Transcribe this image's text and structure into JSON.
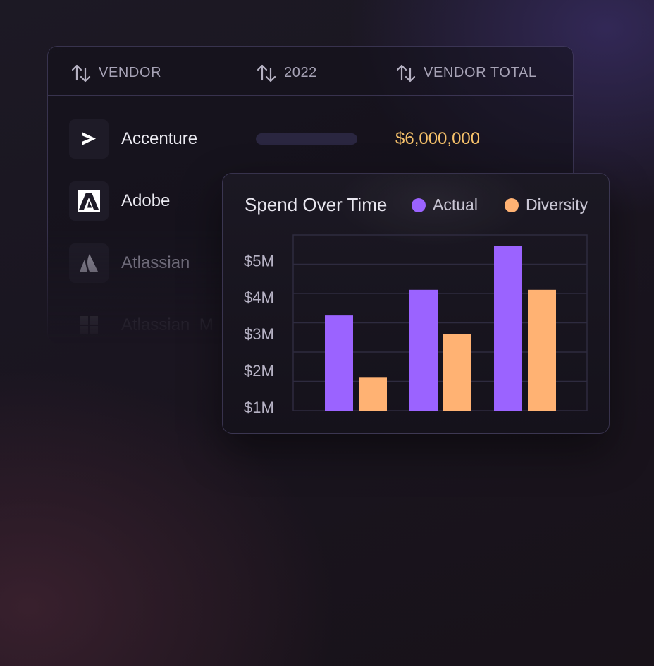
{
  "table": {
    "columns": [
      {
        "label": "VENDOR"
      },
      {
        "label": "2022"
      },
      {
        "label": "VENDOR TOTAL"
      }
    ],
    "rows": [
      {
        "vendor": "Accenture",
        "logo": "accenture-logo",
        "total": "$6,000,000"
      },
      {
        "vendor": "Adobe",
        "logo": "adobe-logo",
        "total": ""
      },
      {
        "vendor": "Atlassian",
        "logo": "atlassian-logo",
        "total": ""
      },
      {
        "vendor": "Atlassian  M",
        "logo": "microsoft-style-logo",
        "total": ""
      }
    ],
    "colors": {
      "total": "#f7c26b",
      "placeholder_bar": "#2a2640"
    }
  },
  "chart": {
    "title": "Spend Over Time",
    "legend": [
      {
        "label": "Actual",
        "color": "#9b63ff"
      },
      {
        "label": "Diversity",
        "color": "#ffb273"
      }
    ]
  },
  "chart_data": {
    "type": "bar",
    "title": "Spend Over Time",
    "categories": [
      "",
      "",
      ""
    ],
    "series": [
      {
        "name": "Actual",
        "color": "#9b63ff",
        "values": [
          3.6,
          4.3,
          5.5
        ]
      },
      {
        "name": "Diversity",
        "color": "#ffb273",
        "values": [
          1.9,
          3.1,
          4.3
        ]
      }
    ],
    "yticks": [
      "$5M",
      "$4M",
      "$3M",
      "$2M",
      "$1M"
    ],
    "ytick_values": [
      5,
      4,
      3,
      2,
      1
    ],
    "ylim": [
      1,
      5.8
    ],
    "grid": true,
    "legend_position": "top-right"
  }
}
